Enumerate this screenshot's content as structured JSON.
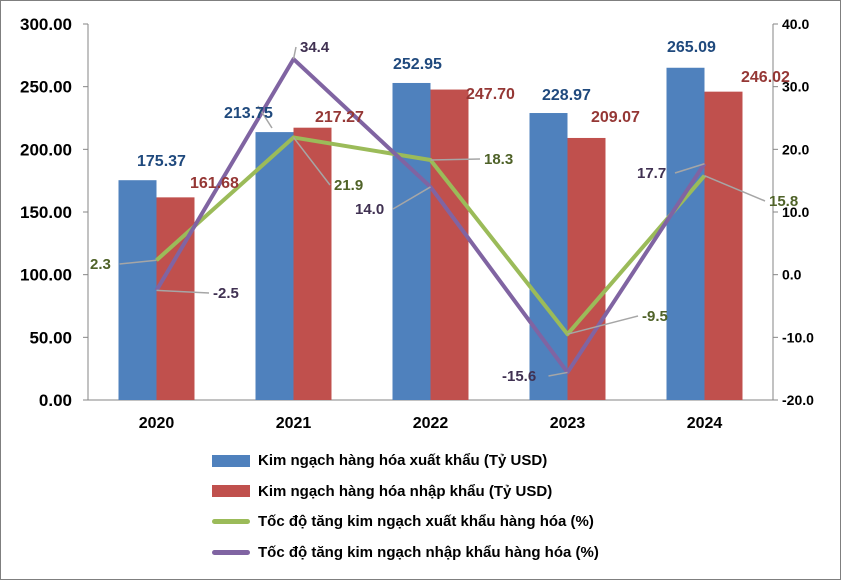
{
  "chart_data": {
    "type": "bar",
    "categories": [
      "2020",
      "2021",
      "2022",
      "2023",
      "2024"
    ],
    "series": [
      {
        "name": "Kim ngạch hàng hóa xuất khẩu (Tỷ USD)",
        "kind": "bar",
        "axis": "left",
        "color": "#4F81BD",
        "label_color": "#1F497D",
        "values": [
          175.37,
          213.75,
          252.95,
          228.97,
          265.09
        ],
        "labels": [
          "175.37",
          "213.75",
          "252.95",
          "228.97",
          "265.09"
        ]
      },
      {
        "name": "Kim ngạch hàng hóa nhập khẩu (Tỷ USD)",
        "kind": "bar",
        "axis": "left",
        "color": "#C0504D",
        "label_color": "#953735",
        "values": [
          161.68,
          217.27,
          247.7,
          209.07,
          246.02
        ],
        "labels": [
          "161.68",
          "217.27",
          "247.70",
          "209.07",
          "246.02"
        ]
      },
      {
        "name": "Tốc độ tăng kim ngạch xuất khẩu hàng hóa (%)",
        "kind": "line",
        "axis": "right",
        "color": "#9BBB59",
        "label_color": "#4F6228",
        "values": [
          2.3,
          21.9,
          18.3,
          -9.5,
          15.8
        ],
        "labels": [
          "2.3",
          "21.9",
          "18.3",
          "-9.5",
          "15.8"
        ]
      },
      {
        "name": "Tốc độ tăng kim ngạch nhập khẩu hàng hóa (%)",
        "kind": "line",
        "axis": "right",
        "color": "#8064A2",
        "label_color": "#403152",
        "values": [
          -2.5,
          34.4,
          14.0,
          -15.6,
          17.7
        ],
        "labels": [
          "-2.5",
          "34.4",
          "14.0",
          "-15.6",
          "17.7"
        ]
      }
    ],
    "y_left": {
      "range": [
        0,
        300
      ],
      "ticks": [
        "0.00",
        "50.00",
        "100.00",
        "150.00",
        "200.00",
        "250.00",
        "300.00"
      ]
    },
    "y_right": {
      "range": [
        -20,
        40
      ],
      "ticks": [
        "-20.0",
        "-10.0",
        "0.0",
        "10.0",
        "20.0",
        "30.0",
        "40.0"
      ]
    },
    "grid": false,
    "legend_position": "bottom"
  }
}
